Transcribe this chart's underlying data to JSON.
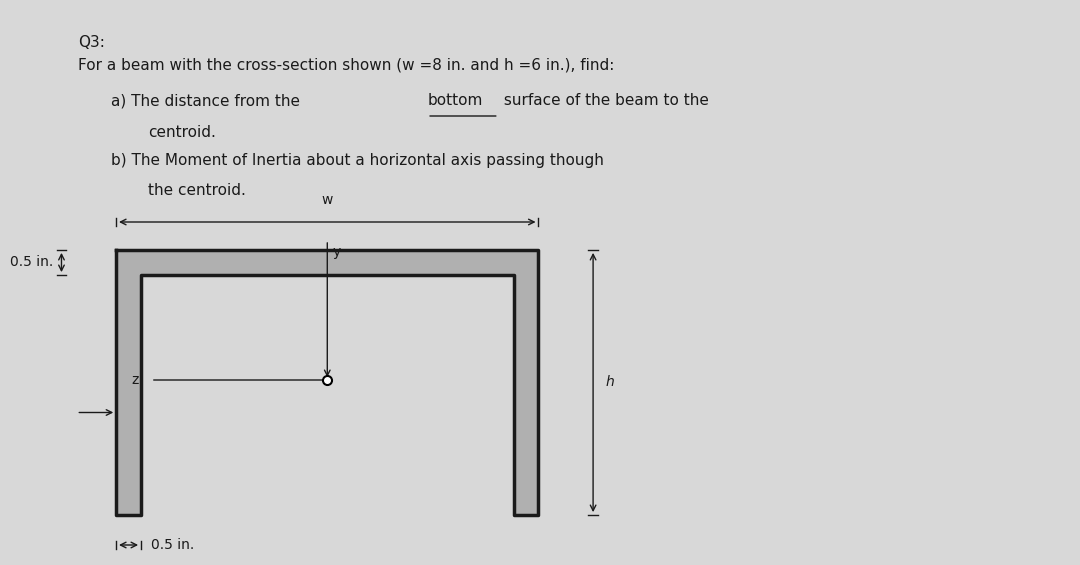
{
  "bg_color": "#d8d8d8",
  "text_color": "#1a1a1a",
  "title_line1": "Q3:",
  "title_line2": "For a beam with the cross-section shown (w =8 in. and h =6 in.), find:",
  "item_a_line1": "a) The distance from the ",
  "item_a_underline": "bottom",
  "item_a_line1_after": " surface of the beam to the",
  "item_a_line2": "centroid.",
  "item_b_line1": "b) The Moment of Inertia about a horizontal axis passing though",
  "item_b_line2": "the centroid.",
  "label_05_top": "0.5 in.",
  "label_05_bottom": "0.5 in.",
  "label_w": "w",
  "label_y": "y",
  "label_z": "z",
  "label_h": "h",
  "shape_line_color": "#1a1a1a",
  "shape_fill": "#b0b0b0",
  "shape_linewidth": 2.5
}
